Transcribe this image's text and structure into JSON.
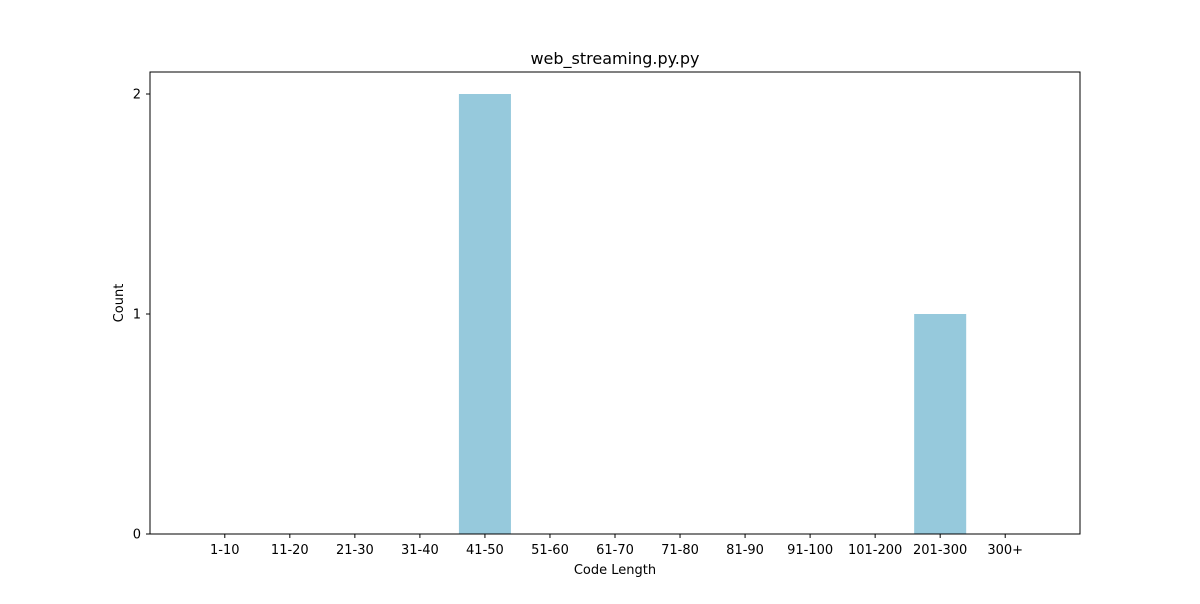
{
  "chart_data": {
    "type": "bar",
    "title": "web_streaming.py.py",
    "xlabel": "Code Length",
    "ylabel": "Count",
    "categories": [
      "1-10",
      "11-20",
      "21-30",
      "31-40",
      "41-50",
      "51-60",
      "61-70",
      "71-80",
      "81-90",
      "91-100",
      "101-200",
      "201-300",
      "300+"
    ],
    "values": [
      0,
      0,
      0,
      0,
      2,
      0,
      0,
      0,
      0,
      0,
      0,
      1,
      0
    ],
    "ylim": [
      0,
      2.1
    ],
    "yticks": [
      0,
      1,
      2
    ],
    "bar_color": "#96c9dc",
    "grid": false,
    "legend": "none"
  }
}
